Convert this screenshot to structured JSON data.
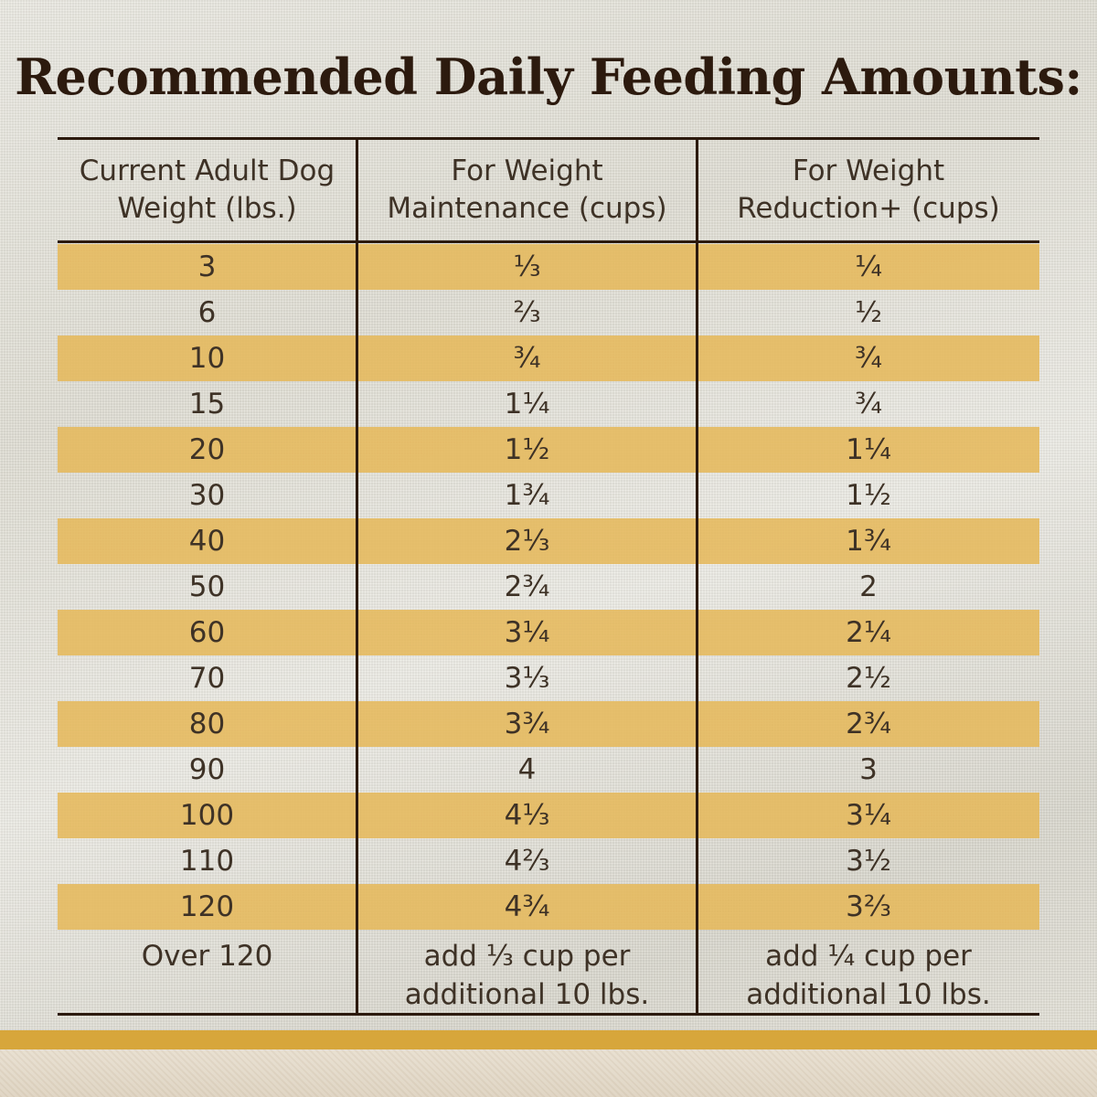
{
  "title": "Recommended Daily Feeding Amounts:",
  "columns": [
    "Current Adult Dog\nWeight (lbs.)",
    "For Weight\nMaintenance (cups)",
    "For Weight\nReduction+ (cups)"
  ],
  "rows": [
    [
      "3",
      "⅓",
      "¼"
    ],
    [
      "6",
      "⅔",
      "½"
    ],
    [
      "10",
      "¾",
      "¾"
    ],
    [
      "15",
      "1¼",
      "¾"
    ],
    [
      "20",
      "1½",
      "1¼"
    ],
    [
      "30",
      "1¾",
      "1½"
    ],
    [
      "40",
      "2⅓",
      "1¾"
    ],
    [
      "50",
      "2¾",
      "2"
    ],
    [
      "60",
      "3¼",
      "2¼"
    ],
    [
      "70",
      "3⅓",
      "2½"
    ],
    [
      "80",
      "3¾",
      "2¾"
    ],
    [
      "90",
      "4",
      "3"
    ],
    [
      "100",
      "4⅓",
      "3¼"
    ],
    [
      "110",
      "4⅔",
      "3½"
    ],
    [
      "120",
      "4¾",
      "3⅔"
    ]
  ],
  "last_row": [
    "Over 120",
    "add ⅓ cup per\nadditional 10 lbs.",
    "add ¼ cup per\nadditional 10 lbs."
  ],
  "colors": {
    "stripe": "#e5b85b",
    "rule": "#2c1a0e",
    "band": "#d7a63b"
  }
}
